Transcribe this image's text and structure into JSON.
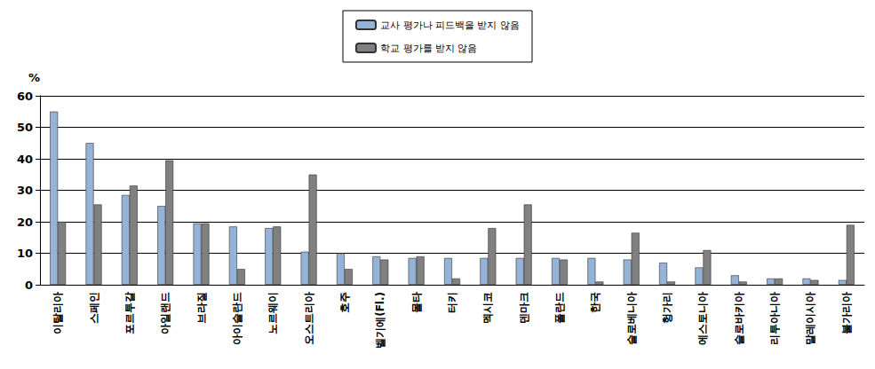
{
  "chart_data": {
    "type": "bar",
    "ylabel": "%",
    "categories": [
      "이탈리아",
      "스페인",
      "포르투갈",
      "아일랜드",
      "브라질",
      "아이슬란드",
      "노르웨이",
      "오스트리아",
      "호주",
      "벨기에(Fl.)",
      "몰타",
      "터키",
      "멕시코",
      "덴마크",
      "폴란드",
      "한국",
      "슬로베니아",
      "헝가리",
      "에스토니아",
      "슬로바키아",
      "리투아니아",
      "말레이시아",
      "불가리아"
    ],
    "series": [
      {
        "name": "교사 평가나 피드백을 받지 않음",
        "color": "#95b3d7",
        "values": [
          55,
          45,
          28.5,
          25,
          19.5,
          18.5,
          18,
          10.5,
          10,
          9,
          8.5,
          8.5,
          8.5,
          8.5,
          8.5,
          8.5,
          8,
          7,
          5.5,
          3,
          2,
          2,
          1.5
        ]
      },
      {
        "name": "학교 평가를 받지 않음",
        "color": "#808080",
        "values": [
          20,
          25.5,
          31.5,
          39.5,
          19.5,
          5,
          18.5,
          35,
          5,
          8,
          9,
          2,
          18,
          25.5,
          8,
          1,
          16.5,
          1,
          11,
          1,
          2,
          1.5,
          19
        ]
      }
    ],
    "ylim": [
      0,
      60
    ],
    "yticks": [
      0,
      10,
      20,
      30,
      40,
      50,
      60
    ],
    "grid": true,
    "legend": "top"
  }
}
